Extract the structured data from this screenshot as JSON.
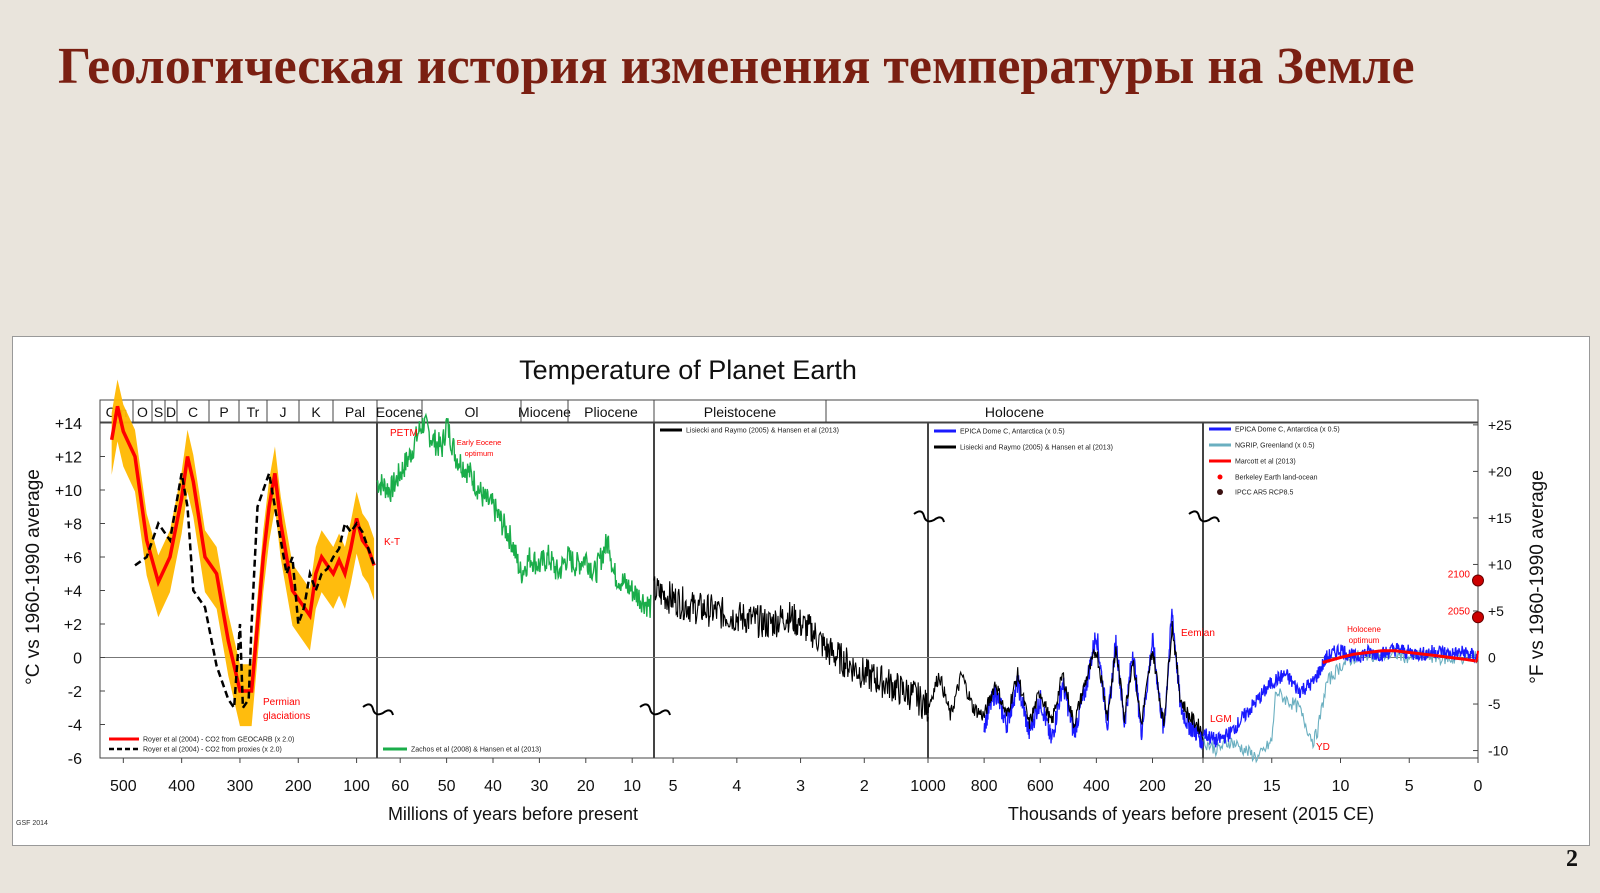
{
  "slide": {
    "title": "Геологическая история изменения температуры на Земле",
    "page_number": "2"
  },
  "colors": {
    "title": "#7a1f12",
    "royer_geocarb": "#ff0000",
    "royer_band": "#ffb800",
    "royer_proxies": "#000000",
    "zachos": "#1aad4a",
    "lisiecki": "#000000",
    "epica": "#1a1aff",
    "ngrip": "#6aafc0",
    "marcott": "#ff0000",
    "berkeley": "#ff0000",
    "ipcc": "#cc0000",
    "annotation": "#ff0000"
  },
  "chart_data": {
    "type": "line",
    "title": "Temperature of Planet Earth",
    "ylabel_left": "°C vs 1960-1990 average",
    "ylabel_right": "°F vs 1960-1990 average",
    "ylim": [
      -6,
      14
    ],
    "yticks_left": [
      "+14",
      "+12",
      "+10",
      "+8",
      "+6",
      "+4",
      "+2",
      "0",
      "-2",
      "-4",
      "-6"
    ],
    "yticks_right": [
      "+25",
      "+20",
      "+15",
      "+10",
      "+5",
      "0",
      "-5",
      "-10"
    ],
    "grid": false,
    "credit": "GSF 2014",
    "xlabel_left": "Millions of years before present",
    "xlabel_right": "Thousands of years before present (2015 CE)",
    "eras": [
      "Cm",
      "O",
      "S",
      "D",
      "C",
      "P",
      "Tr",
      "J",
      "K",
      "Pal",
      "Eocene",
      "Ol",
      "Miocene",
      "Pliocene",
      "Pleistocene",
      "Holocene"
    ],
    "panels": [
      {
        "xrange": [
          540,
          65
        ],
        "xticks": [
          "500",
          "400",
          "300",
          "200",
          "100"
        ],
        "series": [
          {
            "name": "Royer et al (2004) - CO2 from GEOCARB (x 2.0)",
            "x": [
              520,
              510,
              500,
              480,
              460,
              440,
              420,
              400,
              390,
              380,
              360,
              340,
              320,
              300,
              290,
              280,
              270,
              260,
              250,
              240,
              230,
              220,
              210,
              200,
              190,
              180,
              170,
              160,
              150,
              140,
              130,
              120,
              110,
              100,
              90,
              80,
              70
            ],
            "y": [
              13,
              15,
              13.5,
              12,
              7,
              4.5,
              6,
              9.5,
              12,
              10.5,
              6,
              5,
              1,
              -2,
              -2,
              -2,
              2,
              6,
              9,
              11,
              8,
              6,
              4,
              3.5,
              3,
              2.5,
              5,
              6,
              5.5,
              5,
              5.8,
              5,
              6.5,
              8.3,
              7,
              6.5,
              5.5
            ]
          },
          {
            "name": "Royer et al (2004) - CO2 from proxies (x 2.0)",
            "x": [
              480,
              460,
              440,
              420,
              400,
              390,
              380,
              360,
              340,
              320,
              310,
              300,
              295,
              285,
              280,
              270,
              260,
              250,
              240,
              230,
              220,
              210,
              200,
              190,
              180,
              170,
              160,
              150,
              140,
              130,
              120,
              110,
              100,
              90,
              80,
              70
            ],
            "y": [
              5.5,
              6,
              8,
              7,
              11,
              9,
              4,
              3,
              -0.5,
              -2.5,
              -3,
              2,
              -3,
              -2.5,
              2,
              9,
              10,
              11,
              9,
              7,
              5,
              6,
              2,
              3,
              5,
              4,
              5,
              5.3,
              6,
              6.5,
              8,
              7.5,
              8,
              7.5,
              6.5,
              5.5
            ]
          }
        ],
        "annotations": [
          "Permian glaciations",
          "K-T"
        ]
      },
      {
        "xrange": [
          65,
          5.3
        ],
        "xticks": [
          "60",
          "50",
          "40",
          "30",
          "20",
          "10"
        ],
        "series": [
          {
            "name": "Zachos et al (2008) & Hansen et al (2013)",
            "x": [
              65,
              62,
              60,
              58,
              56,
              55,
              53,
              51,
              50,
              48,
              45,
              42,
              40,
              38,
              36,
              34,
              32,
              30,
              28,
              26,
              24,
              22,
              20,
              18,
              16,
              15,
              14,
              12,
              10,
              8,
              6
            ],
            "y": [
              10.5,
              10,
              11,
              12,
              13.5,
              14,
              13,
              12.5,
              14,
              12,
              11,
              9.5,
              9,
              8,
              7,
              5,
              6,
              5.5,
              6,
              5,
              6,
              5.5,
              6,
              5,
              6.5,
              7,
              5,
              4.5,
              4,
              3.5,
              3
            ]
          }
        ],
        "annotations": [
          "PETM",
          "Early Eocene optimum"
        ]
      },
      {
        "xrange": [
          5.3,
          1.0
        ],
        "xticks": [
          "5",
          "4",
          "3",
          "2",
          "1000"
        ],
        "series": [
          {
            "name": "Lisiecki and Raymo (2005) & Hansen et al (2013)",
            "x": [
              5.3,
              5,
              4.7,
              4.4,
              4.1,
              3.8,
              3.5,
              3.2,
              3.0,
              2.8,
              2.6,
              2.4,
              2.2,
              2.0,
              1.8,
              1.6,
              1.4,
              1.2,
              1.0
            ],
            "y": [
              4,
              3.5,
              3,
              2.8,
              2.5,
              2.3,
              2,
              2.5,
              2,
              1.5,
              0.5,
              0,
              -0.5,
              -1,
              -1.3,
              -1.6,
              -2,
              -2.3,
              -3
            ]
          }
        ],
        "annotations": []
      },
      {
        "xrange": [
          1000,
          20
        ],
        "xticks": [
          "800",
          "600",
          "400",
          "200"
        ],
        "series": [
          {
            "name": "EPICA Dome C, Antarctica (x 0.5)",
            "x": [
              800,
              760,
              720,
              680,
              640,
              600,
              560,
              520,
              480,
              440,
              400,
              360,
              330,
              300,
              270,
              240,
              200,
              160,
              130,
              100,
              70,
              40,
              20
            ],
            "y": [
              -4,
              -2,
              -4,
              -1.5,
              -4.5,
              -2.5,
              -5,
              -1.5,
              -4.5,
              -2,
              1.5,
              -4,
              1,
              -4,
              0.5,
              -4.5,
              1,
              -4.5,
              2.8,
              -3,
              -4,
              -4.5,
              -5
            ]
          },
          {
            "name": "Lisiecki and Raymo (2005) & Hansen et al (2013)",
            "x": [
              1000,
              960,
              920,
              880,
              840,
              800,
              760,
              720,
              680,
              640,
              600,
              560,
              520,
              480,
              440,
              400,
              360,
              330,
              300,
              270,
              240,
              200,
              160,
              130,
              100,
              70,
              40,
              20
            ],
            "y": [
              -3,
              -1,
              -3.5,
              -1,
              -3,
              -3.5,
              -1.5,
              -3.5,
              -1,
              -4,
              -2,
              -4,
              -1,
              -4,
              -1.5,
              0.5,
              -3.5,
              0.5,
              -3.5,
              0,
              -4,
              0.5,
              -4,
              2,
              -2.5,
              -3.5,
              -4,
              -4.5
            ]
          }
        ],
        "annotations": [
          "Eemian"
        ]
      },
      {
        "xrange": [
          20,
          0
        ],
        "xticks": [
          "20",
          "15",
          "10",
          "5",
          "0"
        ],
        "series": [
          {
            "name": "EPICA Dome C, Antarctica (x 0.5)",
            "x": [
              20,
              19,
              18,
              17,
              16,
              15,
              14,
              13,
              12,
              11,
              10,
              9,
              8,
              7,
              6,
              5,
              4,
              3,
              2,
              1,
              0
            ],
            "y": [
              -4.5,
              -5,
              -4.5,
              -3.5,
              -2.5,
              -1.5,
              -1,
              -2,
              -1.5,
              0,
              0.5,
              0,
              0.3,
              0.2,
              0.5,
              0.3,
              0.2,
              0.4,
              0.2,
              0.3,
              0
            ]
          },
          {
            "name": "NGRIP, Greenland (x 0.5)",
            "x": [
              20,
              19,
              18,
              17,
              16,
              15,
              14.7,
              14,
              13,
              12.8,
              12,
              11.7,
              11,
              10,
              9,
              8,
              7,
              6,
              5,
              4,
              3,
              2,
              1,
              0
            ],
            "y": [
              -5,
              -5.5,
              -5,
              -5.5,
              -6,
              -5,
              -2,
              -2.5,
              -3,
              -3.5,
              -5,
              -4.5,
              -1.5,
              -0.5,
              0,
              0.2,
              0.1,
              0.2,
              0,
              0.1,
              0,
              -0.1,
              0,
              0
            ]
          },
          {
            "name": "Marcott et al (2013)",
            "x": [
              11.3,
              10,
              9,
              8,
              7,
              6,
              5,
              4,
              3,
              2,
              1,
              0.2
            ],
            "y": [
              -0.3,
              0,
              0.2,
              0.3,
              0.4,
              0.4,
              0.3,
              0.2,
              0.1,
              0,
              -0.1,
              -0.2
            ]
          },
          {
            "name": "Berkeley Earth land-ocean",
            "x": [
              0.15,
              0.1,
              0.05,
              0.0
            ],
            "y": [
              -0.3,
              -0.2,
              0,
              0.4
            ]
          },
          {
            "name": "IPCC AR5 RCP8.5",
            "x": [
              0,
              0
            ],
            "y": [
              2.4,
              4.6
            ],
            "labels": [
              "2050",
              "2100"
            ]
          }
        ],
        "annotations": [
          "Holocene optimum",
          "LGM",
          "YD"
        ]
      }
    ]
  }
}
